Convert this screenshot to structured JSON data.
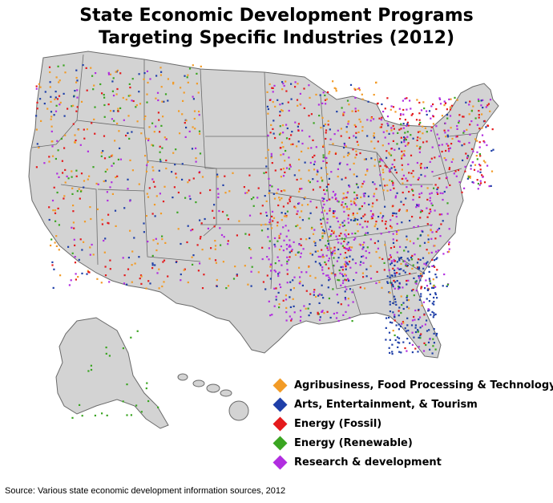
{
  "title_line1": "State Economic Development Programs",
  "title_line2": "Targeting Specific Industries (2012)",
  "legend": [
    {
      "label": "Agribusiness, Food Processing & Technology",
      "color": "#f29b26"
    },
    {
      "label": "Arts, Entertainment, & Tourism",
      "color": "#1f3fa8"
    },
    {
      "label": "Energy (Fossil)",
      "color": "#e41a1c"
    },
    {
      "label": "Energy (Renewable)",
      "color": "#3aa521"
    },
    {
      "label": "Research & development",
      "color": "#b12de0"
    }
  ],
  "source": "Source: Various state economic development information sources, 2012",
  "map_fill": "#d3d3d3",
  "map_stroke": "#6a6a6a"
}
